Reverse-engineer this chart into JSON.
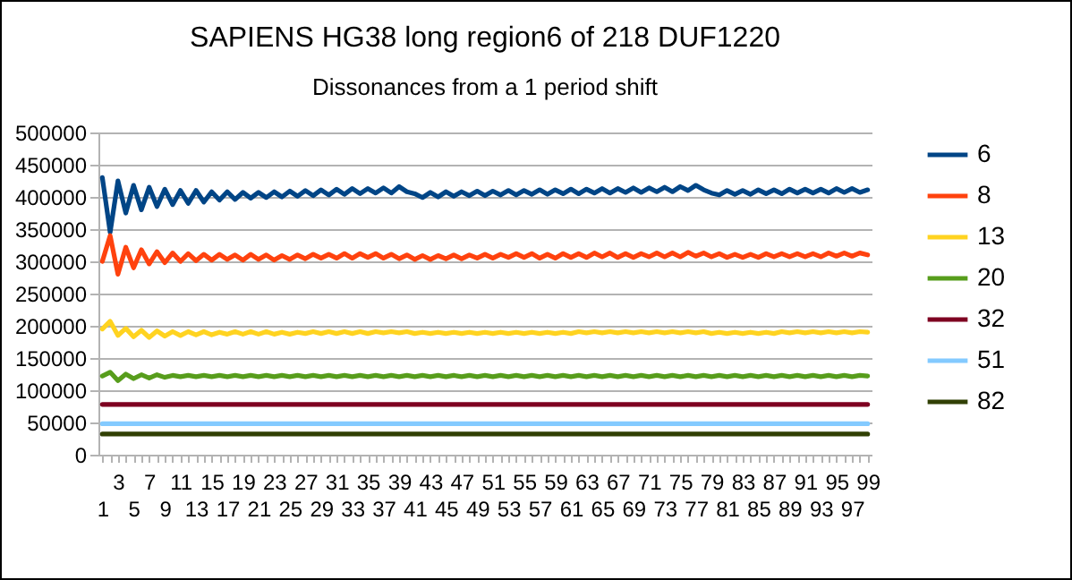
{
  "chart_data": {
    "type": "line",
    "title": "SAPIENS HG38 long region6 of 218 DUF1220",
    "subtitle": "Dissonances from a 1 period shift",
    "categories": [
      "1",
      null,
      "3",
      null,
      "5",
      null,
      "7",
      null,
      "9",
      null,
      "11",
      null,
      "13",
      null,
      "15",
      null,
      "17",
      null,
      "19",
      null,
      "21",
      null,
      "23",
      null,
      "25",
      null,
      "27",
      null,
      "29",
      null,
      "31",
      null,
      "33",
      null,
      "35",
      null,
      "37",
      null,
      "39",
      null,
      "41",
      null,
      "43",
      null,
      "45",
      null,
      "47",
      null,
      "49",
      null,
      "51",
      null,
      "53",
      null,
      "55",
      null,
      "57",
      null,
      "59",
      null,
      "61",
      null,
      "63",
      null,
      "65",
      null,
      "67",
      null,
      "69",
      null,
      "71",
      null,
      "73",
      null,
      "75",
      null,
      "77",
      null,
      "79",
      null,
      "81",
      null,
      "83",
      null,
      "85",
      null,
      "87",
      null,
      "89",
      null,
      "91",
      null,
      "93",
      null,
      "95",
      null,
      "97",
      null,
      "99"
    ],
    "ylim": [
      0,
      500000
    ],
    "yticks": [
      0,
      50000,
      100000,
      150000,
      200000,
      250000,
      300000,
      350000,
      400000,
      450000,
      500000
    ],
    "grid": "y",
    "legend": "right",
    "marker": "none",
    "series": [
      {
        "name": "6",
        "color": "#004586",
        "values": [
          430000,
          345000,
          425000,
          375000,
          418000,
          380000,
          415000,
          385000,
          412000,
          388000,
          410000,
          390000,
          410000,
          392000,
          408000,
          395000,
          408000,
          396000,
          407000,
          398000,
          407000,
          399000,
          408000,
          400000,
          409000,
          401000,
          410000,
          402000,
          411000,
          403000,
          412000,
          404000,
          413000,
          405000,
          413000,
          406000,
          414000,
          406000,
          416000,
          408000,
          405000,
          399000,
          407000,
          400000,
          408000,
          401000,
          408000,
          402000,
          409000,
          402000,
          409000,
          403000,
          410000,
          403000,
          410000,
          404000,
          411000,
          404000,
          411000,
          405000,
          412000,
          405000,
          412000,
          406000,
          413000,
          406000,
          413000,
          407000,
          414000,
          407000,
          414000,
          408000,
          415000,
          408000,
          416000,
          410000,
          418000,
          411000,
          406000,
          403000,
          410000,
          404000,
          410000,
          404000,
          411000,
          405000,
          411000,
          405000,
          412000,
          406000,
          412000,
          406000,
          412000,
          406000,
          413000,
          407000,
          413000,
          407000,
          411000
        ]
      },
      {
        "name": "8",
        "color": "#ff420e",
        "values": [
          300000,
          340000,
          280000,
          322000,
          290000,
          318000,
          296000,
          315000,
          298000,
          313000,
          300000,
          312000,
          301000,
          311000,
          302000,
          311000,
          303000,
          310000,
          302000,
          311000,
          303000,
          310000,
          302000,
          309000,
          303000,
          310000,
          304000,
          311000,
          305000,
          311000,
          305000,
          312000,
          305000,
          312000,
          306000,
          312000,
          305000,
          311000,
          304000,
          310000,
          303000,
          309000,
          303000,
          309000,
          304000,
          310000,
          304000,
          310000,
          305000,
          311000,
          305000,
          311000,
          306000,
          312000,
          306000,
          312000,
          305000,
          311000,
          305000,
          312000,
          306000,
          312000,
          306000,
          313000,
          307000,
          313000,
          306000,
          312000,
          306000,
          312000,
          307000,
          313000,
          307000,
          313000,
          307000,
          314000,
          308000,
          313000,
          307000,
          312000,
          306000,
          311000,
          306000,
          311000,
          306000,
          312000,
          307000,
          312000,
          307000,
          312000,
          307000,
          312000,
          307000,
          313000,
          308000,
          313000,
          308000,
          313000,
          310000
        ]
      },
      {
        "name": "13",
        "color": "#ffd320",
        "values": [
          195000,
          207000,
          185000,
          196000,
          183000,
          193000,
          182000,
          192000,
          184000,
          191000,
          185000,
          191000,
          186000,
          191000,
          186000,
          190000,
          187000,
          191000,
          187000,
          191000,
          187000,
          191000,
          187000,
          190000,
          187000,
          190000,
          188000,
          191000,
          188000,
          191000,
          188000,
          191000,
          188000,
          191000,
          188000,
          191000,
          189000,
          191000,
          189000,
          191000,
          188000,
          190000,
          188000,
          190000,
          188000,
          190000,
          188000,
          190000,
          188000,
          190000,
          188000,
          190000,
          188000,
          190000,
          188000,
          190000,
          188000,
          190000,
          188000,
          190000,
          188000,
          191000,
          189000,
          191000,
          189000,
          191000,
          189000,
          191000,
          189000,
          191000,
          189000,
          191000,
          189000,
          191000,
          189000,
          191000,
          189000,
          191000,
          188000,
          190000,
          188000,
          190000,
          188000,
          190000,
          188000,
          190000,
          188000,
          191000,
          189000,
          191000,
          189000,
          191000,
          189000,
          191000,
          189000,
          191000,
          189000,
          191000,
          190000
        ]
      },
      {
        "name": "20",
        "color": "#579d1c",
        "values": [
          122000,
          128000,
          115000,
          125000,
          118000,
          124000,
          119000,
          124000,
          120000,
          123000,
          121000,
          123000,
          121000,
          123000,
          121000,
          123000,
          121000,
          123000,
          121000,
          123000,
          121000,
          123000,
          121000,
          123000,
          121000,
          123000,
          121000,
          123000,
          121000,
          123000,
          121000,
          123000,
          121000,
          123000,
          121000,
          123000,
          121000,
          123000,
          121000,
          123000,
          121000,
          123000,
          121000,
          123000,
          121000,
          123000,
          121000,
          123000,
          121000,
          123000,
          121000,
          123000,
          121000,
          123000,
          121000,
          123000,
          121000,
          123000,
          121000,
          123000,
          121000,
          123000,
          121000,
          123000,
          121000,
          123000,
          121000,
          123000,
          121000,
          123000,
          121000,
          123000,
          121000,
          123000,
          121000,
          123000,
          121000,
          123000,
          121000,
          123000,
          121000,
          123000,
          121000,
          123000,
          121000,
          123000,
          121000,
          123000,
          121000,
          123000,
          121000,
          123000,
          121000,
          123000,
          121000,
          123000,
          121000,
          123000,
          122000
        ]
      },
      {
        "name": "32",
        "color": "#7e0021",
        "values": [
          78000,
          78000,
          78000,
          78000,
          78000,
          78000,
          78000,
          78000,
          78000,
          78000,
          78000,
          78000,
          78000,
          78000,
          78000,
          78000,
          78000,
          78000,
          78000,
          78000,
          78000,
          78000,
          78000,
          78000,
          78000,
          78000,
          78000,
          78000,
          78000,
          78000,
          78000,
          78000,
          78000,
          78000,
          78000,
          78000,
          78000,
          78000,
          78000,
          78000,
          78000,
          78000,
          78000,
          78000,
          78000,
          78000,
          78000,
          78000,
          78000,
          78000,
          78000,
          78000,
          78000,
          78000,
          78000,
          78000,
          78000,
          78000,
          78000,
          78000,
          78000,
          78000,
          78000,
          78000,
          78000,
          78000,
          78000,
          78000,
          78000,
          78000,
          78000,
          78000,
          78000,
          78000,
          78000,
          78000,
          78000,
          78000,
          78000,
          78000,
          78000,
          78000,
          78000,
          78000,
          78000,
          78000,
          78000,
          78000,
          78000,
          78000,
          78000,
          78000,
          78000,
          78000,
          78000,
          78000,
          78000,
          78000,
          78000
        ]
      },
      {
        "name": "51",
        "color": "#83caff",
        "values": [
          48000,
          48000,
          48000,
          48000,
          48000,
          48000,
          48000,
          48000,
          48000,
          48000,
          48000,
          48000,
          48000,
          48000,
          48000,
          48000,
          48000,
          48000,
          48000,
          48000,
          48000,
          48000,
          48000,
          48000,
          48000,
          48000,
          48000,
          48000,
          48000,
          48000,
          48000,
          48000,
          48000,
          48000,
          48000,
          48000,
          48000,
          48000,
          48000,
          48000,
          48000,
          48000,
          48000,
          48000,
          48000,
          48000,
          48000,
          48000,
          48000,
          48000,
          48000,
          48000,
          48000,
          48000,
          48000,
          48000,
          48000,
          48000,
          48000,
          48000,
          48000,
          48000,
          48000,
          48000,
          48000,
          48000,
          48000,
          48000,
          48000,
          48000,
          48000,
          48000,
          48000,
          48000,
          48000,
          48000,
          48000,
          48000,
          48000,
          48000,
          48000,
          48000,
          48000,
          48000,
          48000,
          48000,
          48000,
          48000,
          48000,
          48000,
          48000,
          48000,
          48000,
          48000,
          48000,
          48000,
          48000,
          48000,
          48000
        ]
      },
      {
        "name": "82",
        "color": "#314004",
        "values": [
          32000,
          32000,
          32000,
          32000,
          32000,
          32000,
          32000,
          32000,
          32000,
          32000,
          32000,
          32000,
          32000,
          32000,
          32000,
          32000,
          32000,
          32000,
          32000,
          32000,
          32000,
          32000,
          32000,
          32000,
          32000,
          32000,
          32000,
          32000,
          32000,
          32000,
          32000,
          32000,
          32000,
          32000,
          32000,
          32000,
          32000,
          32000,
          32000,
          32000,
          32000,
          32000,
          32000,
          32000,
          32000,
          32000,
          32000,
          32000,
          32000,
          32000,
          32000,
          32000,
          32000,
          32000,
          32000,
          32000,
          32000,
          32000,
          32000,
          32000,
          32000,
          32000,
          32000,
          32000,
          32000,
          32000,
          32000,
          32000,
          32000,
          32000,
          32000,
          32000,
          32000,
          32000,
          32000,
          32000,
          32000,
          32000,
          32000,
          32000,
          32000,
          32000,
          32000,
          32000,
          32000,
          32000,
          32000,
          32000,
          32000,
          32000,
          32000,
          32000,
          32000,
          32000,
          32000,
          32000,
          32000,
          32000,
          32000
        ]
      }
    ]
  }
}
